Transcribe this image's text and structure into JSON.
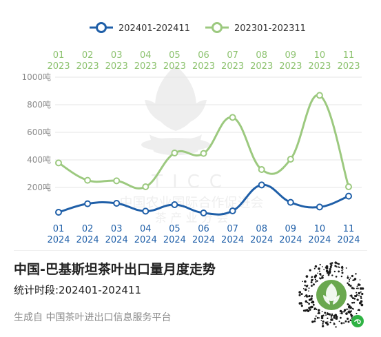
{
  "chart_data": {
    "type": "line",
    "series": [
      {
        "name": "202401-202411",
        "color": "#1f5fa8",
        "x": [
          "01\n2024",
          "02\n2024",
          "03\n2024",
          "04\n2024",
          "05\n2024",
          "06\n2024",
          "07\n2024",
          "08\n2024",
          "09\n2024",
          "10\n2024",
          "11\n2024"
        ],
        "values": [
          20,
          82,
          85,
          28,
          75,
          15,
          30,
          218,
          92,
          58,
          137
        ]
      },
      {
        "name": "202301-202311",
        "color": "#9cc97f",
        "x": [
          "01\n2023",
          "02\n2023",
          "03\n2023",
          "04\n2023",
          "05\n2023",
          "06\n2023",
          "07\n2023",
          "08\n2023",
          "09\n2023",
          "10\n2023",
          "11\n2023"
        ],
        "values": [
          378,
          252,
          248,
          205,
          450,
          447,
          708,
          330,
          405,
          868,
          205
        ]
      }
    ],
    "y_ticks": [
      "1000吨",
      "800吨",
      "600吨",
      "400吨",
      "200吨"
    ],
    "y_tick_values": [
      1000,
      800,
      600,
      400,
      200
    ],
    "ylim": [
      0,
      1000
    ],
    "top_axis_labels": [
      [
        "01",
        "2023"
      ],
      [
        "02",
        "2023"
      ],
      [
        "03",
        "2023"
      ],
      [
        "04",
        "2023"
      ],
      [
        "05",
        "2023"
      ],
      [
        "06",
        "2023"
      ],
      [
        "07",
        "2023"
      ],
      [
        "08",
        "2023"
      ],
      [
        "09",
        "2023"
      ],
      [
        "10",
        "2023"
      ],
      [
        "11",
        "2023"
      ]
    ],
    "bottom_axis_labels": [
      [
        "01",
        "2024"
      ],
      [
        "02",
        "2024"
      ],
      [
        "03",
        "2024"
      ],
      [
        "04",
        "2024"
      ],
      [
        "05",
        "2024"
      ],
      [
        "06",
        "2024"
      ],
      [
        "07",
        "2024"
      ],
      [
        "08",
        "2024"
      ],
      [
        "09",
        "2024"
      ],
      [
        "10",
        "2024"
      ],
      [
        "11",
        "2024"
      ]
    ],
    "legend": [
      {
        "label": "202401-202411",
        "color": "#1f5fa8"
      },
      {
        "label": "202301-202311",
        "color": "#9cc97f"
      }
    ],
    "grid": true,
    "legend_placement": "top-center"
  },
  "watermark": {
    "line1": "TICC",
    "line2": "中国农业国际合作促进会",
    "line3": "茶 产 业 分 会"
  },
  "title": "中国-巴基斯坦茶叶出口量月度走势",
  "period": "统计时段:202401-202411",
  "footer": "生成自 中国茶叶进出口信息服务平台"
}
